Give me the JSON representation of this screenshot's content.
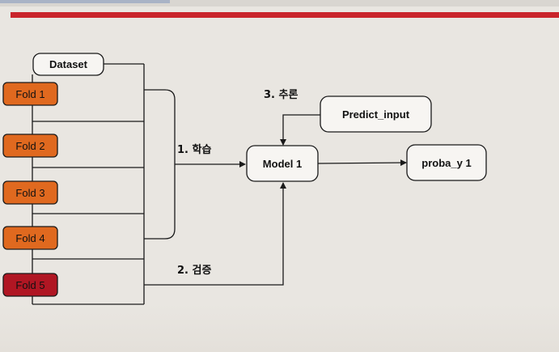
{
  "diagram": {
    "dataset_label": "Dataset",
    "folds": [
      {
        "label": "Fold 1",
        "role": "train"
      },
      {
        "label": "Fold 2",
        "role": "train"
      },
      {
        "label": "Fold 3",
        "role": "train"
      },
      {
        "label": "Fold 4",
        "role": "train"
      },
      {
        "label": "Fold 5",
        "role": "validation"
      }
    ],
    "steps": {
      "train": "1. 학습",
      "validate": "2. 검증",
      "infer": "3. 추론"
    },
    "model_label": "Model 1",
    "predict_input_label": "Predict_input",
    "output_label": "proba_y 1"
  },
  "colors": {
    "background": "#e9e6e1",
    "train_fold_fill": "#e0691f",
    "validation_fold_fill": "#b01623",
    "node_fill": "#f7f5f2",
    "line": "#1a1a1a",
    "accent_bar": "#c9242b"
  }
}
